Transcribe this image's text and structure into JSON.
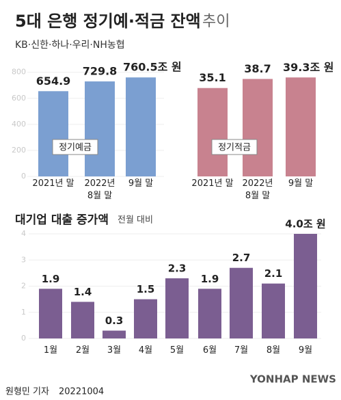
{
  "header": {
    "title": "5대 은행 정기예·적금 잔액",
    "title_suffix": "추이",
    "subtitle": "KB·신한·하나·우리·NH농협"
  },
  "chart_data": [
    {
      "type": "bar",
      "series_label": "정기예금",
      "categories": [
        "2021년 말",
        "2022년\n8월 말",
        "9월 말"
      ],
      "values": [
        654.9,
        729.8,
        760.5
      ],
      "value_labels": [
        "654.9",
        "729.8",
        "760.5조 원"
      ],
      "color": "#7b9fd1",
      "ylim": [
        0,
        830
      ],
      "yticks": [
        0,
        200,
        400,
        600,
        800
      ]
    },
    {
      "type": "bar",
      "series_label": "정기적금",
      "categories": [
        "2021년 말",
        "2022년\n8월 말",
        "9월 말"
      ],
      "values": [
        35.1,
        38.7,
        39.3
      ],
      "value_labels": [
        "35.1",
        "38.7",
        "39.3조 원"
      ],
      "color": "#c8828f",
      "ylim": [
        0,
        42.9
      ]
    },
    {
      "type": "bar",
      "title": "대기업 대출 증가액",
      "subtitle": "전월 대비",
      "categories": [
        "1월",
        "2월",
        "3월",
        "4월",
        "5월",
        "6월",
        "7월",
        "8월",
        "9월"
      ],
      "values": [
        1.9,
        1.4,
        0.3,
        1.5,
        2.3,
        1.9,
        2.7,
        2.1,
        4.0
      ],
      "value_labels": [
        "1.9",
        "1.4",
        "0.3",
        "1.5",
        "2.3",
        "1.9",
        "2.7",
        "2.1",
        "4.0조 원"
      ],
      "color": "#7b5e91",
      "ylim": [
        0,
        4
      ],
      "yticks": [
        0,
        1,
        2,
        3,
        4
      ]
    }
  ],
  "footer": {
    "credit": "원형민 기자",
    "date": "20221004",
    "logo": "YONHAP NEWS"
  }
}
